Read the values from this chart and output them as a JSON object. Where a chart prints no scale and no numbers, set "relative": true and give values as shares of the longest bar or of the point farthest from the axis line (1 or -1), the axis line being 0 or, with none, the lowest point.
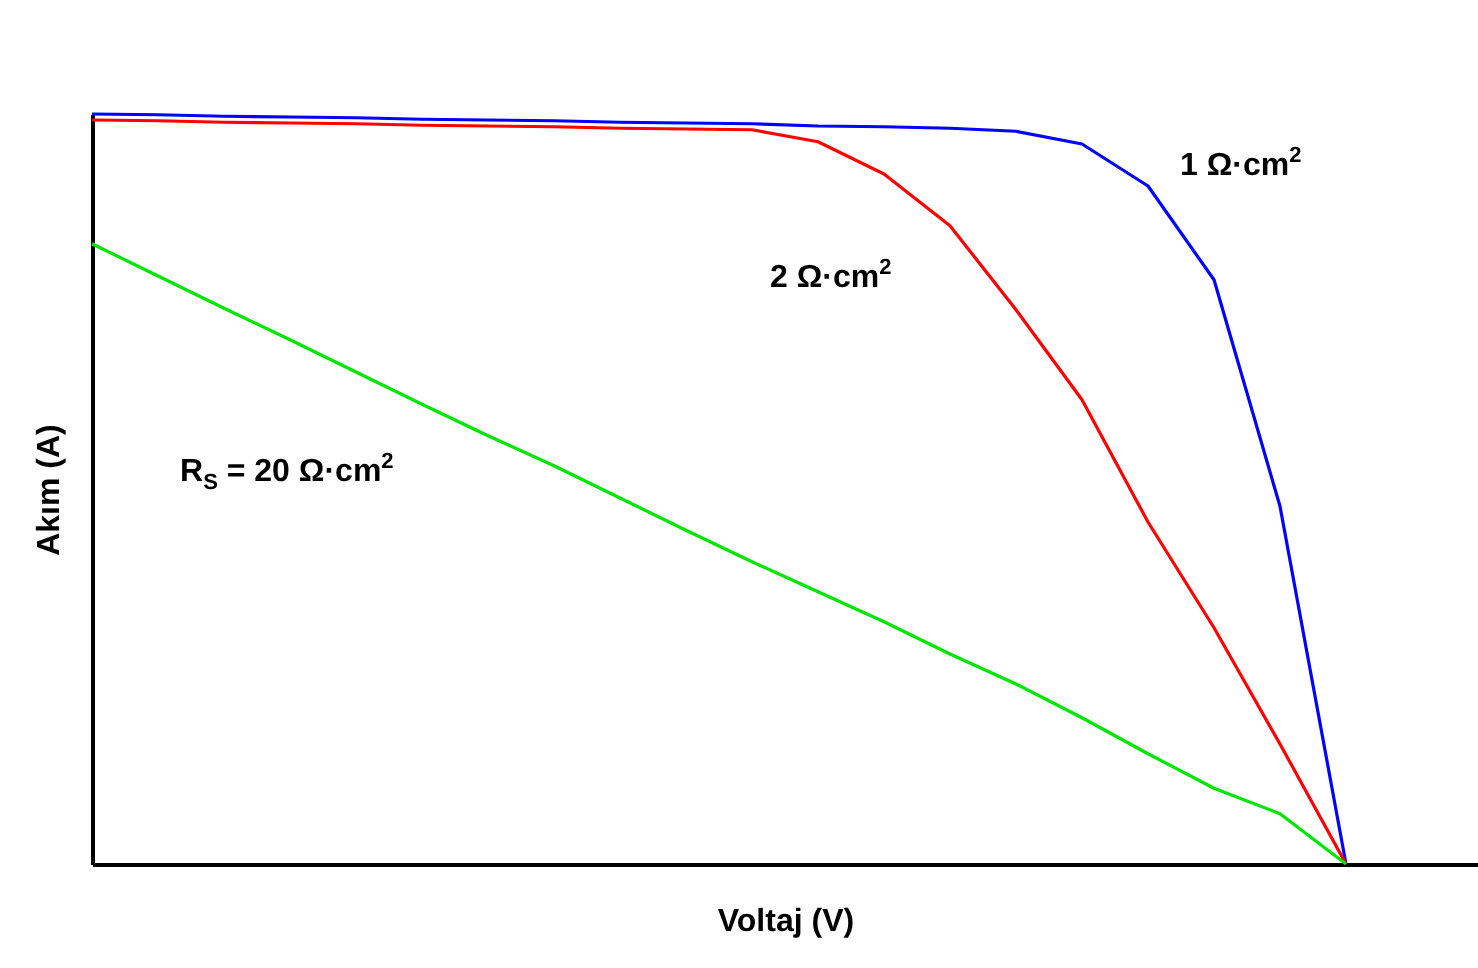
{
  "chart_data": {
    "type": "line",
    "relative": true,
    "xlabel": "Voltaj (V)",
    "ylabel": "Akım (A)",
    "tick_labels": false,
    "grid": false,
    "categories": [
      null,
      null,
      null,
      null,
      null,
      null,
      null,
      null,
      null,
      null,
      null,
      null,
      null,
      null,
      null,
      null,
      null,
      null,
      null,
      null,
      null,
      null
    ],
    "series": [
      {
        "name": "1 Ω·cm$^{2}$",
        "color": "#0000ff",
        "values": [
          1.0,
          0.999,
          0.997,
          0.996,
          0.995,
          0.993,
          0.992,
          0.991,
          0.989,
          0.988,
          0.987,
          0.984,
          0.983,
          0.981,
          0.977,
          0.96,
          0.904,
          0.779,
          0.477,
          0,
          null,
          null
        ]
      },
      {
        "name": "2 Ω·cm$^{2}$",
        "color": "#ff0000",
        "values": [
          0.992,
          0.991,
          0.989,
          0.988,
          0.987,
          0.985,
          0.984,
          0.983,
          0.981,
          0.98,
          0.979,
          0.963,
          0.92,
          0.851,
          0.739,
          0.619,
          0.456,
          0.315,
          0.16,
          0,
          null,
          null
        ]
      },
      {
        "name": "R$_{S}$ = 20 Ω·cm$^{2}$",
        "color": "#00e600",
        "values": [
          0.827,
          0.784,
          0.741,
          0.699,
          0.656,
          0.613,
          0.571,
          0.531,
          0.488,
          0.445,
          0.403,
          0.363,
          0.323,
          0.28,
          0.24,
          0.195,
          0.147,
          0.101,
          0.067,
          0,
          null,
          null
        ]
      }
    ]
  }
}
